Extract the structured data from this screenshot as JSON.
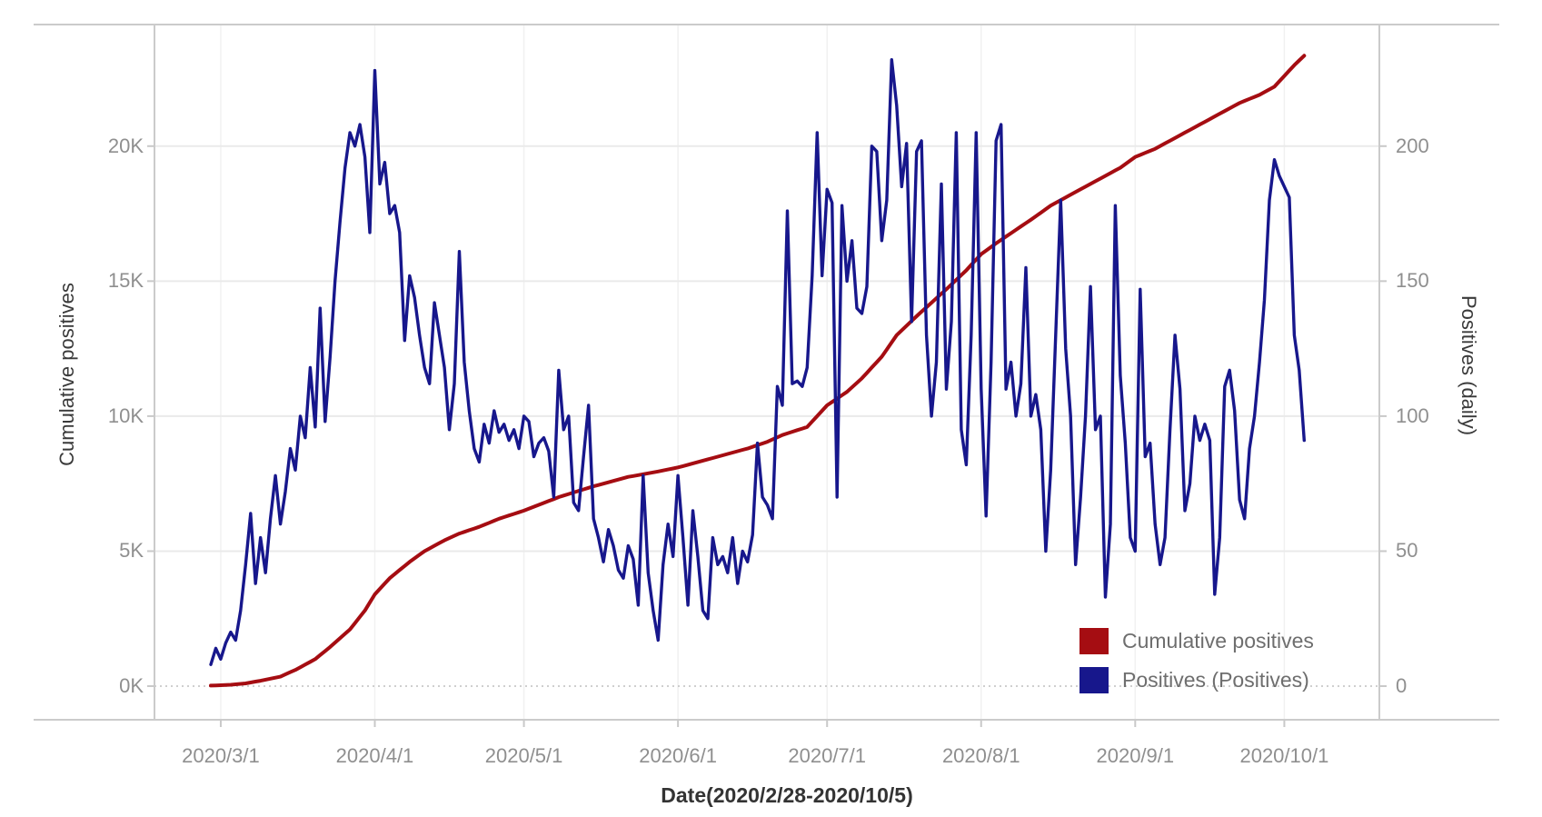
{
  "colors": {
    "cumulative_red": "#A50D12",
    "positives_blue": "#17178C",
    "grid_line": "#EAEAEA",
    "zero_dotted_line": "#BFBFBF",
    "pane_border": "#CBCBCB",
    "month_grid_line": "#F1F1F1",
    "tick_mark": "#C9C9C9",
    "tick_text": "#8F8F8F",
    "axis_title_text": "#3A3A3A",
    "legend_text": "#6E6E6E"
  },
  "chart_data": {
    "type": "line",
    "x_axis": {
      "label": "Date(2020/2/28-2020/10/5)",
      "start": "2020/2/28",
      "end": "2020/10/5",
      "ticks": [
        {
          "label": "2020/3/1",
          "day": 2
        },
        {
          "label": "2020/4/1",
          "day": 33
        },
        {
          "label": "2020/5/1",
          "day": 63
        },
        {
          "label": "2020/6/1",
          "day": 94
        },
        {
          "label": "2020/7/1",
          "day": 124
        },
        {
          "label": "2020/8/1",
          "day": 155
        },
        {
          "label": "2020/9/1",
          "day": 186
        },
        {
          "label": "2020/10/1",
          "day": 216
        }
      ]
    },
    "y_left": {
      "label": "Cumulative positives",
      "unit": "thousands",
      "range_k": [
        0,
        24.5
      ],
      "ticks": [
        {
          "label": "0K",
          "value": 0
        },
        {
          "label": "5K",
          "value": 5
        },
        {
          "label": "10K",
          "value": 10
        },
        {
          "label": "15K",
          "value": 15
        },
        {
          "label": "20K",
          "value": 20
        }
      ]
    },
    "y_right": {
      "label": "Positives (daily)",
      "range": [
        0,
        245
      ],
      "ticks": [
        {
          "label": "0",
          "value": 0
        },
        {
          "label": "50",
          "value": 50
        },
        {
          "label": "100",
          "value": 100
        },
        {
          "label": "150",
          "value": 150
        },
        {
          "label": "200",
          "value": 200
        }
      ]
    },
    "grid": {
      "horizontal": true,
      "zero_line_dotted": true,
      "vertical_month_lines": true
    },
    "legend": {
      "position": "bottom-right",
      "entries": [
        {
          "label": "Cumulative positives",
          "color": "#A50D12"
        },
        {
          "label": "Positives (Positives)",
          "color": "#17178C"
        }
      ]
    },
    "series": [
      {
        "name": "Cumulative positives",
        "axis": "left",
        "color": "#A50D12",
        "unit": "K",
        "points_day_valueK": [
          [
            0,
            0.02
          ],
          [
            4,
            0.05
          ],
          [
            7,
            0.1
          ],
          [
            10,
            0.2
          ],
          [
            14,
            0.35
          ],
          [
            17,
            0.6
          ],
          [
            21,
            1.0
          ],
          [
            24,
            1.45
          ],
          [
            28,
            2.1
          ],
          [
            31,
            2.8
          ],
          [
            33,
            3.4
          ],
          [
            36,
            4.0
          ],
          [
            40,
            4.6
          ],
          [
            43,
            5.0
          ],
          [
            47,
            5.4
          ],
          [
            50,
            5.65
          ],
          [
            54,
            5.9
          ],
          [
            58,
            6.2
          ],
          [
            63,
            6.5
          ],
          [
            70,
            7.0
          ],
          [
            77,
            7.4
          ],
          [
            84,
            7.75
          ],
          [
            90,
            7.95
          ],
          [
            94,
            8.1
          ],
          [
            101,
            8.45
          ],
          [
            108,
            8.8
          ],
          [
            112,
            9.05
          ],
          [
            115,
            9.3
          ],
          [
            120,
            9.6
          ],
          [
            124,
            10.4
          ],
          [
            128,
            10.9
          ],
          [
            131,
            11.4
          ],
          [
            135,
            12.2
          ],
          [
            138,
            13.0
          ],
          [
            142,
            13.7
          ],
          [
            145,
            14.2
          ],
          [
            148,
            14.7
          ],
          [
            152,
            15.4
          ],
          [
            155,
            16.0
          ],
          [
            158,
            16.4
          ],
          [
            162,
            16.9
          ],
          [
            166,
            17.4
          ],
          [
            169,
            17.8
          ],
          [
            172,
            18.1
          ],
          [
            176,
            18.5
          ],
          [
            180,
            18.9
          ],
          [
            183,
            19.2
          ],
          [
            186,
            19.6
          ],
          [
            190,
            19.9
          ],
          [
            193,
            20.2
          ],
          [
            197,
            20.6
          ],
          [
            200,
            20.9
          ],
          [
            204,
            21.3
          ],
          [
            207,
            21.6
          ],
          [
            211,
            21.9
          ],
          [
            214,
            22.2
          ],
          [
            216,
            22.6
          ],
          [
            218,
            23.0
          ],
          [
            220,
            23.35
          ]
        ]
      },
      {
        "name": "Positives (Positives)",
        "axis": "right",
        "color": "#17178C",
        "start_day": "2020/2/28",
        "cadence": "daily",
        "daily_values": [
          8,
          14,
          10,
          16,
          20,
          17,
          28,
          45,
          64,
          38,
          55,
          42,
          62,
          78,
          60,
          72,
          88,
          80,
          100,
          92,
          118,
          96,
          140,
          98,
          122,
          150,
          172,
          192,
          205,
          200,
          208,
          196,
          168,
          228,
          186,
          194,
          175,
          178,
          168,
          128,
          152,
          144,
          130,
          118,
          112,
          142,
          130,
          118,
          95,
          112,
          161,
          120,
          102,
          88,
          83,
          97,
          90,
          102,
          94,
          97,
          91,
          95,
          88,
          100,
          98,
          85,
          90,
          92,
          87,
          70,
          117,
          95,
          100,
          68,
          65,
          85,
          104,
          62,
          55,
          46,
          58,
          52,
          43,
          40,
          52,
          47,
          30,
          78,
          42,
          28,
          17,
          45,
          60,
          48,
          78,
          55,
          30,
          65,
          48,
          28,
          25,
          55,
          45,
          48,
          42,
          55,
          38,
          50,
          46,
          56,
          90,
          70,
          67,
          62,
          111,
          104,
          176,
          112,
          113,
          111,
          118,
          152,
          205,
          152,
          184,
          179,
          70,
          178,
          150,
          165,
          140,
          138,
          148,
          200,
          198,
          165,
          180,
          232,
          215,
          185,
          201,
          135,
          198,
          202,
          130,
          100,
          120,
          186,
          110,
          135,
          205,
          95,
          82,
          130,
          205,
          110,
          63,
          120,
          202,
          208,
          110,
          120,
          100,
          112,
          155,
          100,
          108,
          95,
          50,
          80,
          130,
          180,
          125,
          100,
          45,
          70,
          100,
          148,
          95,
          100,
          33,
          60,
          178,
          115,
          90,
          55,
          50,
          147,
          85,
          90,
          60,
          45,
          55,
          95,
          130,
          110,
          65,
          75,
          100,
          91,
          97,
          91,
          34,
          55,
          111,
          117,
          102,
          69,
          62,
          88,
          100,
          120,
          143,
          180,
          195,
          189,
          185,
          181,
          130,
          117,
          91
        ]
      }
    ]
  }
}
